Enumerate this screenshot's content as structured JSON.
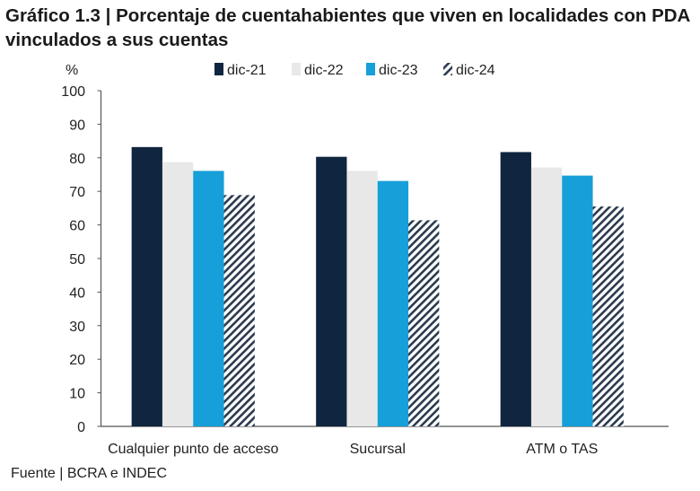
{
  "chart_data": {
    "type": "bar",
    "title": "Gráfico 1.3 | Porcentaje de cuentahabientes que viven en localidades con PDA vinculados a sus cuentas",
    "ylabel": "%",
    "xlabel": "",
    "ylim": [
      0,
      100
    ],
    "yticks": [
      0,
      10,
      20,
      30,
      40,
      50,
      60,
      70,
      80,
      90,
      100
    ],
    "categories": [
      "Cualquier punto de acceso",
      "Sucursal",
      "ATM o TAS"
    ],
    "series": [
      {
        "name": "dic-21",
        "color": "#10253f",
        "pattern": "solid",
        "values": [
          83.2,
          80.3,
          81.7
        ]
      },
      {
        "name": "dic-22",
        "color": "#e8e8e8",
        "pattern": "solid",
        "values": [
          78.7,
          76.1,
          77.1
        ]
      },
      {
        "name": "dic-23",
        "color": "#169fd8",
        "pattern": "solid",
        "values": [
          76.1,
          73.1,
          74.7
        ]
      },
      {
        "name": "dic-24",
        "color": "#2b3a4f",
        "pattern": "diagonal-hatch",
        "values": [
          68.9,
          61.4,
          65.5
        ]
      }
    ],
    "legend": "top",
    "grid": false,
    "source": "Fuente | BCRA e INDEC"
  }
}
